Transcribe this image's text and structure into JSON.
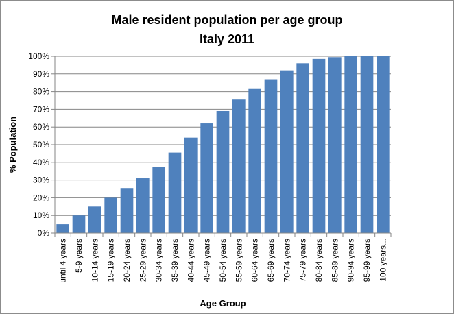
{
  "chart_data": {
    "type": "bar",
    "title": "Male resident population per age group",
    "subtitle": "Italy 2011",
    "xlabel": "Age Group",
    "ylabel": "% Population",
    "ylim": [
      0,
      100
    ],
    "yticks": [
      "0%",
      "10%",
      "20%",
      "30%",
      "40%",
      "50%",
      "60%",
      "70%",
      "80%",
      "90%",
      "100%"
    ],
    "categories": [
      "until 4 years",
      "5-9 years",
      "10-14 years",
      "15-19 years",
      "20-24 years",
      "25-29 years",
      "30-34 years",
      "35-39 years",
      "40-44 years",
      "45-49 years",
      "50-54 years",
      "55-59 years",
      "60-64 years",
      "65-69 years",
      "70-74 years",
      "75-79 years",
      "80-84 years",
      "85-89 years",
      "90-94 years",
      "95-99 years",
      "100 years..."
    ],
    "values": [
      5,
      10,
      15,
      20,
      25.5,
      31,
      37.5,
      45.5,
      54,
      62,
      69,
      75.5,
      81.5,
      87,
      92,
      96,
      98.5,
      99.5,
      100,
      100,
      100
    ],
    "bar_color": "#4f81bd",
    "grid": true,
    "legend": "none"
  }
}
